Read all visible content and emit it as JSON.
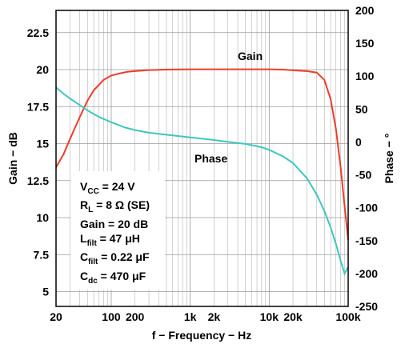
{
  "chart_data": {
    "type": "line",
    "title": "",
    "xlabel": "f − Frequency − Hz",
    "ylabel": "Gain − dB",
    "y2label": "Phase − °",
    "xscale": "log",
    "xlim": [
      20,
      100000
    ],
    "ylim": [
      4,
      24
    ],
    "y2lim": [
      -250,
      200
    ],
    "grid": true,
    "x_ticks": [
      20,
      100,
      200,
      1000,
      2000,
      10000,
      20000,
      100000
    ],
    "x_tick_labels": [
      "20",
      "100",
      "200",
      "1k",
      "2k",
      "10k",
      "20k",
      "100k"
    ],
    "y_ticks": [
      5,
      7.5,
      10,
      12.5,
      15,
      17.5,
      20,
      22.5
    ],
    "y_tick_labels": [
      "5",
      "7.5",
      "10",
      "12.5",
      "15",
      "17.5",
      "20",
      "22.5"
    ],
    "y2_ticks": [
      -250,
      -200,
      -150,
      -100,
      -50,
      0,
      50,
      100,
      150,
      200
    ],
    "y2_tick_labels": [
      "-250",
      "-200",
      "-150",
      "-100",
      "-50",
      "0",
      "50",
      "100",
      "150",
      "200"
    ],
    "series": [
      {
        "name": "Gain",
        "axis": "left",
        "color": "#ee3b2b",
        "x": [
          20,
          25,
          30,
          40,
          50,
          60,
          80,
          100,
          130,
          160,
          200,
          300,
          500,
          1000,
          2000,
          5000,
          10000,
          15000,
          20000,
          30000,
          40000,
          50000,
          60000,
          70000,
          80000,
          90000,
          100000
        ],
        "y": [
          13.4,
          14.3,
          15.3,
          16.8,
          17.9,
          18.6,
          19.3,
          19.6,
          19.75,
          19.85,
          19.9,
          19.97,
          20.0,
          20.02,
          20.02,
          20.02,
          20.02,
          20.0,
          19.95,
          19.9,
          19.8,
          19.3,
          18.0,
          16.0,
          13.5,
          10.8,
          8.5
        ]
      },
      {
        "name": "Phase",
        "axis": "right",
        "color": "#3ec7bd",
        "x": [
          20,
          25,
          30,
          40,
          50,
          70,
          100,
          150,
          200,
          300,
          500,
          1000,
          2000,
          3000,
          5000,
          8000,
          10000,
          15000,
          20000,
          30000,
          40000,
          50000,
          60000,
          70000,
          80000,
          90000,
          100000
        ],
        "y": [
          83,
          73,
          66,
          56,
          48,
          38,
          30,
          22,
          18,
          14,
          11,
          7,
          3,
          0,
          -3,
          -8,
          -12,
          -22,
          -32,
          -55,
          -80,
          -105,
          -130,
          -155,
          -180,
          -200,
          -190
        ]
      }
    ],
    "annotations": [
      "Gain",
      "Phase"
    ]
  },
  "conditions": {
    "vcc": {
      "main": "V",
      "sub": "CC",
      "rest": " = 24 V"
    },
    "rl": {
      "main": "R",
      "sub": "L",
      "rest": " = 8 Ω (SE)"
    },
    "gain": {
      "main": "Gain = 20 dB"
    },
    "lfilt": {
      "main": "L",
      "sub": "filt",
      "rest": " = 47 μH"
    },
    "cfilt": {
      "main": "C",
      "sub": "filt",
      "rest": " = 0.22 μF"
    },
    "cdc": {
      "main": "C",
      "sub": "dc",
      "rest": " = 470 μF"
    }
  }
}
